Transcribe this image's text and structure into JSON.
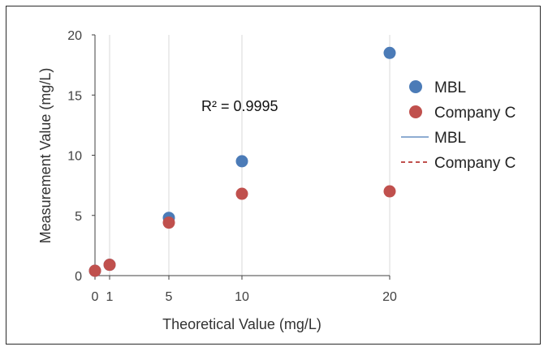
{
  "chart_data": {
    "type": "scatter",
    "x_categories": [
      "0",
      "1",
      "5",
      "10",
      "20"
    ],
    "series": [
      {
        "name": "MBL",
        "color": "#4b7bb7",
        "x": [
          "0",
          "1",
          "5",
          "10",
          "20"
        ],
        "values": [
          0.4,
          0.9,
          4.8,
          9.5,
          18.5
        ],
        "trendline": "linear"
      },
      {
        "name": "Company C",
        "color": "#c0504d",
        "x": [
          "0",
          "1",
          "5",
          "10",
          "20"
        ],
        "values": [
          0.4,
          0.9,
          4.4,
          6.8,
          7.0
        ],
        "trendline": "polynomial"
      }
    ],
    "xlabel": "Theoretical Value (mg/L)",
    "ylabel": "Measurement Value (mg/L)",
    "ylim": [
      0,
      20
    ],
    "yticks": [
      0,
      5,
      10,
      15,
      20
    ],
    "annotation": "R² = 0.9995",
    "grid": "vertical",
    "legend": {
      "placement": "right",
      "entries": [
        {
          "label": "MBL",
          "kind": "marker"
        },
        {
          "label": "Company C",
          "kind": "marker"
        },
        {
          "label": "MBL",
          "kind": "line"
        },
        {
          "label": "Company C",
          "kind": "dashed-line"
        }
      ]
    }
  }
}
